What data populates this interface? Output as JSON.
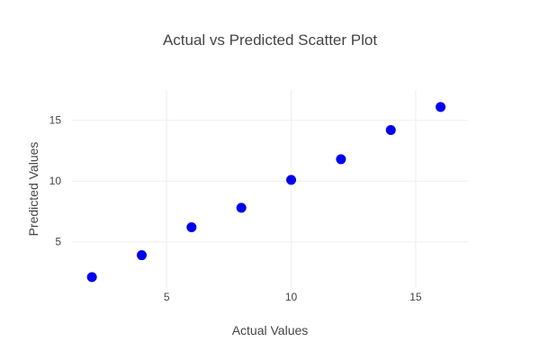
{
  "chart_data": {
    "type": "scatter",
    "title": "Actual vs Predicted Scatter Plot",
    "xlabel": "Actual Values",
    "ylabel": "Predicted Values",
    "xlim": [
      1.2,
      17.1
    ],
    "ylim": [
      1.2,
      17.5
    ],
    "xticks": [
      5,
      10,
      15
    ],
    "yticks": [
      5,
      10,
      15
    ],
    "grid": true,
    "marker_color": "#0000ee",
    "series": [
      {
        "x": [
          2,
          4,
          6,
          8,
          10,
          12,
          14,
          16
        ],
        "y": [
          2.1,
          3.9,
          6.2,
          7.8,
          10.1,
          11.8,
          14.2,
          16.1
        ]
      }
    ]
  }
}
